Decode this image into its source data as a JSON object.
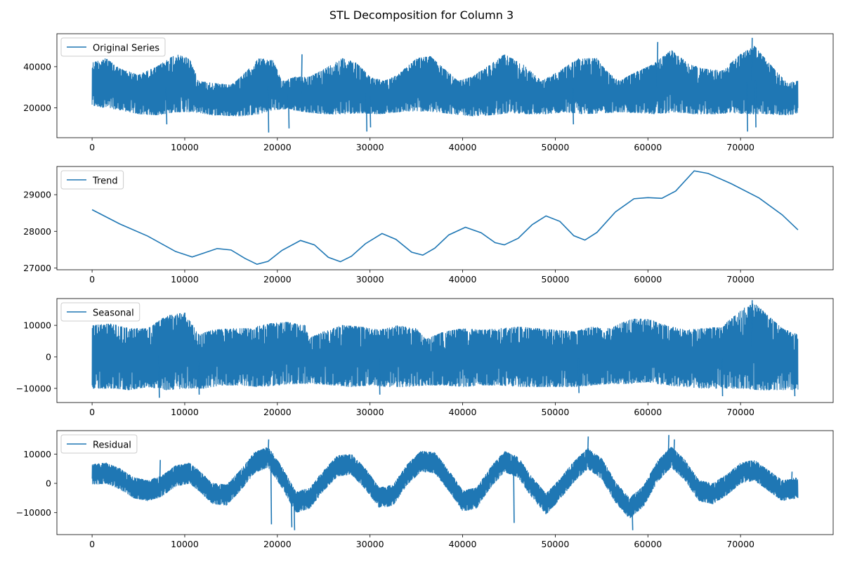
{
  "figure": {
    "title": "STL Decomposition for Column 3"
  },
  "chart_data": [
    {
      "type": "line",
      "legend": "top-left",
      "color": "#1f77b4",
      "series": [
        {
          "name": "Original Series",
          "style": "noise-band"
        }
      ],
      "xlim": [
        -3800,
        80000
      ],
      "ylim": [
        5500,
        56000
      ],
      "xticks": [
        0,
        10000,
        20000,
        30000,
        40000,
        50000,
        60000,
        70000
      ],
      "yticks": [
        20000,
        40000
      ],
      "n_points": 76200,
      "upper_envelope": [
        [
          0,
          42000
        ],
        [
          1500,
          44000
        ],
        [
          3000,
          39000
        ],
        [
          5000,
          36000
        ],
        [
          7000,
          40000
        ],
        [
          9000,
          46000
        ],
        [
          10500,
          44000
        ],
        [
          11500,
          33000
        ],
        [
          13000,
          32000
        ],
        [
          15000,
          31000
        ],
        [
          16500,
          37000
        ],
        [
          18000,
          44000
        ],
        [
          19500,
          43000
        ],
        [
          20500,
          33000
        ],
        [
          22000,
          35000
        ],
        [
          23500,
          35000
        ],
        [
          25500,
          40000
        ],
        [
          27000,
          44000
        ],
        [
          28500,
          42000
        ],
        [
          30000,
          35000
        ],
        [
          31500,
          33000
        ],
        [
          33000,
          36000
        ],
        [
          35000,
          44000
        ],
        [
          36500,
          45000
        ],
        [
          38000,
          39000
        ],
        [
          39500,
          33000
        ],
        [
          41000,
          35000
        ],
        [
          43000,
          41000
        ],
        [
          44500,
          46000
        ],
        [
          46500,
          41000
        ],
        [
          48500,
          33000
        ],
        [
          50500,
          38000
        ],
        [
          52500,
          44000
        ],
        [
          54500,
          44000
        ],
        [
          55500,
          38000
        ],
        [
          57000,
          33000
        ],
        [
          58500,
          37000
        ],
        [
          60500,
          41000
        ],
        [
          62500,
          48000
        ],
        [
          64500,
          41000
        ],
        [
          66000,
          39000
        ],
        [
          68000,
          38000
        ],
        [
          70000,
          46000
        ],
        [
          71500,
          50000
        ],
        [
          73000,
          42000
        ],
        [
          75000,
          32000
        ],
        [
          76200,
          33000
        ]
      ],
      "lower_envelope": [
        [
          0,
          21000
        ],
        [
          3000,
          19000
        ],
        [
          5000,
          17000
        ],
        [
          7000,
          16500
        ],
        [
          9000,
          18000
        ],
        [
          11000,
          18000
        ],
        [
          13000,
          16500
        ],
        [
          16000,
          16000
        ],
        [
          18000,
          17000
        ],
        [
          19500,
          19000
        ],
        [
          21000,
          19500
        ],
        [
          23000,
          18000
        ],
        [
          25000,
          17000
        ],
        [
          27000,
          17000
        ],
        [
          29000,
          17500
        ],
        [
          31000,
          17000
        ],
        [
          33000,
          18000
        ],
        [
          35000,
          18500
        ],
        [
          37000,
          18000
        ],
        [
          39000,
          17000
        ],
        [
          41000,
          16000
        ],
        [
          43000,
          16500
        ],
        [
          45000,
          17500
        ],
        [
          47000,
          17000
        ],
        [
          49000,
          17000
        ],
        [
          51000,
          18000
        ],
        [
          53000,
          17000
        ],
        [
          55000,
          17500
        ],
        [
          57000,
          18000
        ],
        [
          59000,
          17500
        ],
        [
          61000,
          17000
        ],
        [
          63000,
          18000
        ],
        [
          65000,
          17000
        ],
        [
          67000,
          17000
        ],
        [
          69000,
          17500
        ],
        [
          71000,
          17000
        ],
        [
          73000,
          17000
        ],
        [
          75000,
          16500
        ],
        [
          76200,
          17000
        ]
      ],
      "spikes": [
        [
          8000,
          12000
        ],
        [
          19000,
          8000
        ],
        [
          21200,
          10000
        ],
        [
          22600,
          46000
        ],
        [
          29600,
          8500
        ],
        [
          30000,
          10500
        ],
        [
          51900,
          12000
        ],
        [
          61000,
          52000
        ],
        [
          70700,
          8500
        ],
        [
          71200,
          54000
        ],
        [
          71600,
          10500
        ]
      ]
    },
    {
      "type": "line",
      "legend": "top-left",
      "color": "#1f77b4",
      "series": [
        {
          "name": "Trend"
        }
      ],
      "xlim": [
        -3800,
        80000
      ],
      "ylim": [
        26950,
        29770
      ],
      "xticks": [
        0,
        10000,
        20000,
        30000,
        40000,
        50000,
        60000,
        70000
      ],
      "yticks": [
        27000,
        28000,
        29000
      ],
      "points": [
        [
          0,
          28590
        ],
        [
          3000,
          28200
        ],
        [
          6000,
          27870
        ],
        [
          9000,
          27450
        ],
        [
          10800,
          27300
        ],
        [
          12000,
          27400
        ],
        [
          13500,
          27530
        ],
        [
          15000,
          27490
        ],
        [
          16500,
          27260
        ],
        [
          17800,
          27100
        ],
        [
          19000,
          27180
        ],
        [
          20500,
          27480
        ],
        [
          22500,
          27750
        ],
        [
          24000,
          27630
        ],
        [
          25500,
          27290
        ],
        [
          26800,
          27170
        ],
        [
          28000,
          27320
        ],
        [
          29500,
          27660
        ],
        [
          31300,
          27940
        ],
        [
          32800,
          27780
        ],
        [
          34500,
          27430
        ],
        [
          35700,
          27350
        ],
        [
          37000,
          27540
        ],
        [
          38500,
          27900
        ],
        [
          40300,
          28110
        ],
        [
          42000,
          27960
        ],
        [
          43500,
          27690
        ],
        [
          44500,
          27630
        ],
        [
          46000,
          27810
        ],
        [
          47500,
          28180
        ],
        [
          49000,
          28420
        ],
        [
          50500,
          28270
        ],
        [
          52000,
          27880
        ],
        [
          53200,
          27760
        ],
        [
          54500,
          27970
        ],
        [
          56500,
          28530
        ],
        [
          58500,
          28890
        ],
        [
          60000,
          28920
        ],
        [
          61500,
          28900
        ],
        [
          63000,
          29100
        ],
        [
          65000,
          29650
        ],
        [
          66500,
          29580
        ],
        [
          69000,
          29300
        ],
        [
          72000,
          28910
        ],
        [
          74500,
          28450
        ],
        [
          76200,
          28040
        ]
      ]
    },
    {
      "type": "line",
      "legend": "top-left",
      "color": "#1f77b4",
      "series": [
        {
          "name": "Seasonal",
          "style": "noise-band"
        }
      ],
      "xlim": [
        -3800,
        80000
      ],
      "ylim": [
        -14500,
        18500
      ],
      "xticks": [
        0,
        10000,
        20000,
        30000,
        40000,
        50000,
        60000,
        70000
      ],
      "yticks": [
        -10000,
        0,
        10000
      ],
      "n_points": 76200,
      "upper_envelope": [
        [
          0,
          10000
        ],
        [
          2000,
          10500
        ],
        [
          4000,
          9000
        ],
        [
          6000,
          9000
        ],
        [
          8000,
          13000
        ],
        [
          10000,
          14000
        ],
        [
          11500,
          7000
        ],
        [
          13000,
          8500
        ],
        [
          15000,
          9000
        ],
        [
          17000,
          9000
        ],
        [
          19000,
          10500
        ],
        [
          21000,
          11000
        ],
        [
          23000,
          10000
        ],
        [
          23500,
          6000
        ],
        [
          25000,
          8000
        ],
        [
          27000,
          10000
        ],
        [
          29000,
          9500
        ],
        [
          31000,
          8500
        ],
        [
          33000,
          10000
        ],
        [
          35000,
          9000
        ],
        [
          36000,
          5500
        ],
        [
          38000,
          8000
        ],
        [
          40000,
          9000
        ],
        [
          42000,
          8500
        ],
        [
          44000,
          9000
        ],
        [
          46000,
          9500
        ],
        [
          48000,
          9000
        ],
        [
          50000,
          8500
        ],
        [
          52000,
          8000
        ],
        [
          54000,
          9500
        ],
        [
          56000,
          9000
        ],
        [
          58000,
          12000
        ],
        [
          60000,
          12000
        ],
        [
          62000,
          10000
        ],
        [
          64000,
          8500
        ],
        [
          66000,
          9000
        ],
        [
          68000,
          9500
        ],
        [
          70000,
          15000
        ],
        [
          71500,
          17000
        ],
        [
          73000,
          13000
        ],
        [
          74500,
          9000
        ],
        [
          76200,
          7000
        ]
      ],
      "lower_envelope": [
        [
          0,
          -10000
        ],
        [
          2000,
          -10000
        ],
        [
          4000,
          -10500
        ],
        [
          6000,
          -9500
        ],
        [
          8000,
          -10500
        ],
        [
          10000,
          -10000
        ],
        [
          12000,
          -10000
        ],
        [
          14000,
          -9000
        ],
        [
          16000,
          -9000
        ],
        [
          18000,
          -9500
        ],
        [
          20000,
          -9000
        ],
        [
          22000,
          -8500
        ],
        [
          24000,
          -8500
        ],
        [
          26000,
          -9000
        ],
        [
          28000,
          -9500
        ],
        [
          30000,
          -9000
        ],
        [
          32000,
          -9500
        ],
        [
          34000,
          -9500
        ],
        [
          36000,
          -9000
        ],
        [
          38000,
          -9000
        ],
        [
          40000,
          -9500
        ],
        [
          42000,
          -9000
        ],
        [
          44000,
          -9000
        ],
        [
          46000,
          -9500
        ],
        [
          48000,
          -9500
        ],
        [
          50000,
          -9500
        ],
        [
          52000,
          -9500
        ],
        [
          54000,
          -9000
        ],
        [
          56000,
          -8500
        ],
        [
          58000,
          -8500
        ],
        [
          60000,
          -8000
        ],
        [
          62000,
          -9000
        ],
        [
          64000,
          -9500
        ],
        [
          66000,
          -10000
        ],
        [
          68000,
          -10000
        ],
        [
          70000,
          -10000
        ],
        [
          72000,
          -10500
        ],
        [
          74000,
          -10500
        ],
        [
          76200,
          -10500
        ]
      ],
      "spikes": [
        [
          7200,
          -13000
        ],
        [
          11500,
          -12000
        ],
        [
          31000,
          -12000
        ],
        [
          52500,
          -11500
        ],
        [
          68000,
          -12500
        ],
        [
          71200,
          18000
        ],
        [
          75800,
          -12500
        ]
      ]
    },
    {
      "type": "line",
      "legend": "top-left",
      "color": "#1f77b4",
      "series": [
        {
          "name": "Residual",
          "style": "noise-band"
        }
      ],
      "xlim": [
        -3800,
        80000
      ],
      "ylim": [
        -17500,
        18000
      ],
      "xticks": [
        0,
        10000,
        20000,
        30000,
        40000,
        50000,
        60000,
        70000
      ],
      "yticks": [
        -10000,
        0,
        10000
      ],
      "n_points": 76200,
      "center_line": [
        [
          0,
          3000
        ],
        [
          1500,
          3500
        ],
        [
          3000,
          1500
        ],
        [
          4500,
          -1500
        ],
        [
          6000,
          -2500
        ],
        [
          7500,
          -1000
        ],
        [
          9000,
          2500
        ],
        [
          10500,
          3500
        ],
        [
          11500,
          1000
        ],
        [
          13000,
          -3500
        ],
        [
          14500,
          -4000
        ],
        [
          16000,
          1000
        ],
        [
          17500,
          7000
        ],
        [
          19000,
          9000
        ],
        [
          20500,
          2000
        ],
        [
          22000,
          -6500
        ],
        [
          23500,
          -5000
        ],
        [
          25000,
          1000
        ],
        [
          26500,
          6000
        ],
        [
          28000,
          6500
        ],
        [
          29500,
          1500
        ],
        [
          31000,
          -5000
        ],
        [
          32500,
          -4000
        ],
        [
          34000,
          3000
        ],
        [
          35500,
          7500
        ],
        [
          37000,
          7000
        ],
        [
          38500,
          1000
        ],
        [
          40000,
          -6000
        ],
        [
          41500,
          -5000
        ],
        [
          43000,
          2000
        ],
        [
          44500,
          7500
        ],
        [
          46000,
          5500
        ],
        [
          47500,
          -1500
        ],
        [
          49000,
          -7000
        ],
        [
          50500,
          -2000
        ],
        [
          52000,
          4000
        ],
        [
          53500,
          8500
        ],
        [
          55000,
          5000
        ],
        [
          56500,
          -3000
        ],
        [
          58000,
          -8500
        ],
        [
          59500,
          -4500
        ],
        [
          61000,
          4000
        ],
        [
          62500,
          9000
        ],
        [
          64000,
          4500
        ],
        [
          65500,
          -2500
        ],
        [
          67000,
          -3500
        ],
        [
          68500,
          -500
        ],
        [
          70000,
          3500
        ],
        [
          71500,
          4500
        ],
        [
          73000,
          1000
        ],
        [
          74500,
          -2500
        ],
        [
          76200,
          -1500
        ]
      ],
      "spread": 3500,
      "spikes": [
        [
          100,
          6500
        ],
        [
          7300,
          8000
        ],
        [
          19000,
          15000
        ],
        [
          19300,
          -14000
        ],
        [
          21500,
          -15000
        ],
        [
          21800,
          -16000
        ],
        [
          45500,
          -13500
        ],
        [
          53500,
          16000
        ],
        [
          58300,
          -16000
        ],
        [
          62200,
          16500
        ],
        [
          62800,
          15000
        ],
        [
          75500,
          4000
        ]
      ]
    }
  ]
}
